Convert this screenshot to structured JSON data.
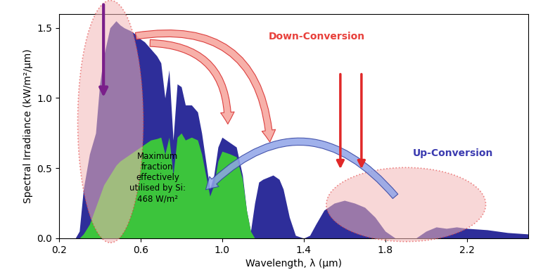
{
  "chart_data": {
    "type": "area",
    "x_label": "Wavelength, λ (μm)",
    "y_label": "Spectral Irradiance (kW/m²/μm)",
    "annotations": [
      "Down-Conversion",
      "Up-Conversion",
      "Maximum\nfraction\neffectively\nutilised by Si:\n468 W/m²"
    ],
    "x": [
      0.28,
      0.3,
      0.32,
      0.35,
      0.38,
      0.4,
      0.42,
      0.45,
      0.48,
      0.5,
      0.52,
      0.55,
      0.58,
      0.6,
      0.62,
      0.65,
      0.68,
      0.7,
      0.72,
      0.74,
      0.76,
      0.78,
      0.8,
      0.82,
      0.85,
      0.88,
      0.9,
      0.92,
      0.94,
      0.96,
      0.98,
      1.0,
      1.04,
      1.07,
      1.1,
      1.12,
      1.14,
      1.16,
      1.18,
      1.2,
      1.25,
      1.28,
      1.3,
      1.33,
      1.36,
      1.4,
      1.43,
      1.46,
      1.5,
      1.55,
      1.6,
      1.65,
      1.7,
      1.75,
      1.8,
      1.85,
      1.95,
      2.0,
      2.05,
      2.1,
      2.15,
      2.2,
      2.3,
      2.4,
      2.5
    ],
    "series": [
      {
        "color": "#2e2e9a",
        "values": [
          0.0,
          0.05,
          0.35,
          0.6,
          0.75,
          1.1,
          1.3,
          1.5,
          1.55,
          1.52,
          1.5,
          1.48,
          1.45,
          1.42,
          1.4,
          1.35,
          1.3,
          1.25,
          1.0,
          1.2,
          0.7,
          1.1,
          1.08,
          0.95,
          0.95,
          0.9,
          0.75,
          0.55,
          0.35,
          0.45,
          0.65,
          0.72,
          0.68,
          0.65,
          0.45,
          0.2,
          0.05,
          0.25,
          0.4,
          0.42,
          0.45,
          0.42,
          0.35,
          0.15,
          0.02,
          0.0,
          0.02,
          0.1,
          0.2,
          0.25,
          0.27,
          0.25,
          0.22,
          0.15,
          0.05,
          0.0,
          0.0,
          0.05,
          0.08,
          0.07,
          0.08,
          0.07,
          0.06,
          0.04,
          0.03
        ]
      },
      {
        "color": "#3cc43c",
        "values": [
          0.0,
          0.0,
          0.03,
          0.1,
          0.22,
          0.3,
          0.38,
          0.45,
          0.52,
          0.55,
          0.57,
          0.6,
          0.63,
          0.65,
          0.67,
          0.7,
          0.71,
          0.72,
          0.6,
          0.72,
          0.45,
          0.72,
          0.75,
          0.7,
          0.72,
          0.7,
          0.6,
          0.45,
          0.3,
          0.38,
          0.55,
          0.62,
          0.6,
          0.58,
          0.42,
          0.2,
          0.05,
          0.0,
          0.0,
          0.0,
          0.0,
          0.0,
          0.0,
          0.0,
          0.0,
          0.0,
          0.0,
          0.0,
          0.0,
          0.0,
          0.0,
          0.0,
          0.0,
          0.0,
          0.0,
          0.0,
          0.0,
          0.0,
          0.0,
          0.0,
          0.0,
          0.0,
          0.0,
          0.0,
          0.0
        ]
      }
    ],
    "xlim": [
      0.2,
      2.5
    ],
    "xticks": [
      0.2,
      0.6,
      1.0,
      1.4,
      1.8,
      2.2
    ],
    "ylim": [
      0,
      1.6
    ],
    "yticks": [
      0.0,
      0.5,
      1.0,
      1.5
    ]
  }
}
